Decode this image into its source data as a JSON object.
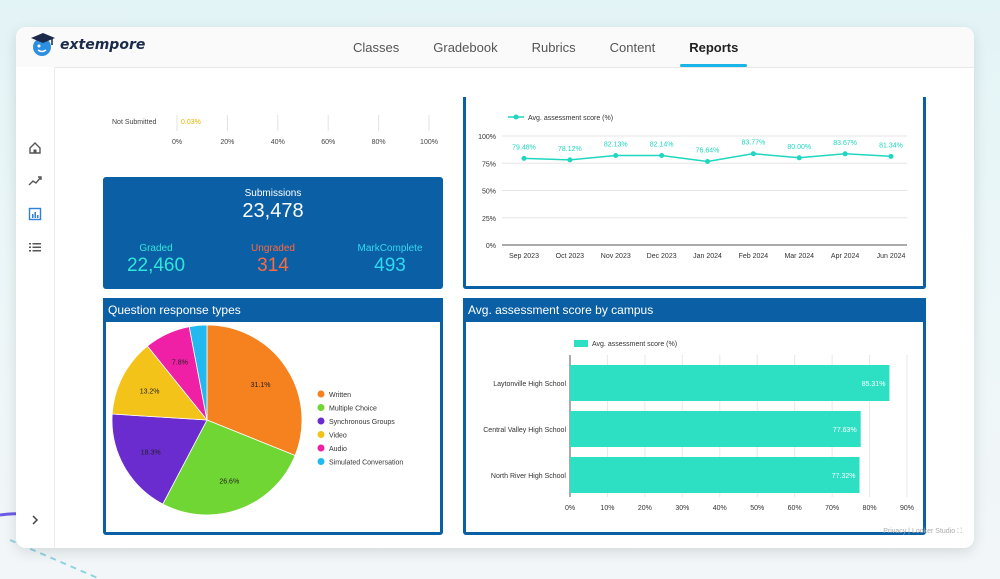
{
  "app": {
    "logo_text": "extempore"
  },
  "nav": {
    "tabs": [
      {
        "label": "Classes",
        "active": false
      },
      {
        "label": "Gradebook",
        "active": false
      },
      {
        "label": "Rubrics",
        "active": false
      },
      {
        "label": "Content",
        "active": false
      },
      {
        "label": "Reports",
        "active": true
      }
    ]
  },
  "sidebar": {
    "icons": [
      "home-icon",
      "trend-icon",
      "report-icon",
      "list-icon"
    ],
    "expand_icon": "chevron-right-icon"
  },
  "submission_bar": {
    "category": "Not Submitted",
    "value_label": "0.03%",
    "ticks": [
      "0%",
      "20%",
      "40%",
      "60%",
      "80%",
      "100%"
    ]
  },
  "stats": {
    "submissions_label": "Submissions",
    "submissions_value": "23,478",
    "graded_label": "Graded",
    "graded_value": "22,460",
    "ungraded_label": "Ungraded",
    "ungraded_value": "314",
    "markcomplete_label": "MarkComplete",
    "markcomplete_value": "493",
    "colors": {
      "graded": "#2fe6d8",
      "ungraded": "#ff6a3d",
      "markcomplete": "#2fd8f0"
    }
  },
  "line_chart": {
    "legend": "Avg. assessment score (%)",
    "y_ticks": [
      "100%",
      "75%",
      "50%",
      "25%",
      "0%"
    ],
    "categories": [
      "Sep 2023",
      "Oct 2023",
      "Nov 2023",
      "Dec 2023",
      "Jan 2024",
      "Feb 2024",
      "Mar 2024",
      "Apr 2024",
      "Jun 2024"
    ],
    "values": [
      79.48,
      78.12,
      82.13,
      82.14,
      76.64,
      83.77,
      80.0,
      83.67,
      81.34
    ],
    "labels": [
      "79.48%",
      "78.12%",
      "82.13%",
      "82.14%",
      "76.64%",
      "83.77%",
      "80.00%",
      "83.67%",
      "81.34%"
    ],
    "color": "#1fd6bf"
  },
  "pie_chart": {
    "title": "Question response types",
    "slices": [
      {
        "name": "Written",
        "value": 31.1,
        "label": "31.1%",
        "color": "#f5811f"
      },
      {
        "name": "Multiple Choice",
        "value": 26.6,
        "label": "26.6%",
        "color": "#70d633"
      },
      {
        "name": "Synchronous Groups",
        "value": 18.3,
        "label": "18.3%",
        "color": "#6a2ccf"
      },
      {
        "name": "Video",
        "value": 13.2,
        "label": "13.2%",
        "color": "#f3c31a"
      },
      {
        "name": "Audio",
        "value": 7.8,
        "label": "7.8%",
        "color": "#ef1fa6"
      },
      {
        "name": "Simulated Conversation",
        "value": 3.0,
        "label": "",
        "color": "#22b9f0"
      }
    ]
  },
  "bar_chart": {
    "title": "Avg. assessment score by campus",
    "legend": "Avg. assessment score (%)",
    "categories": [
      "Laytonville High School",
      "Central Valley High School",
      "North River High School"
    ],
    "values": [
      85.31,
      77.63,
      77.32
    ],
    "labels": [
      "85.31%",
      "77.63%",
      "77.32%"
    ],
    "x_ticks": [
      "0%",
      "10%",
      "20%",
      "30%",
      "40%",
      "50%",
      "60%",
      "70%",
      "80%",
      "90%"
    ],
    "color": "#2de0c4"
  },
  "footer": {
    "privacy": "Privacy",
    "sep": "|",
    "studio": "Looker Studio"
  }
}
